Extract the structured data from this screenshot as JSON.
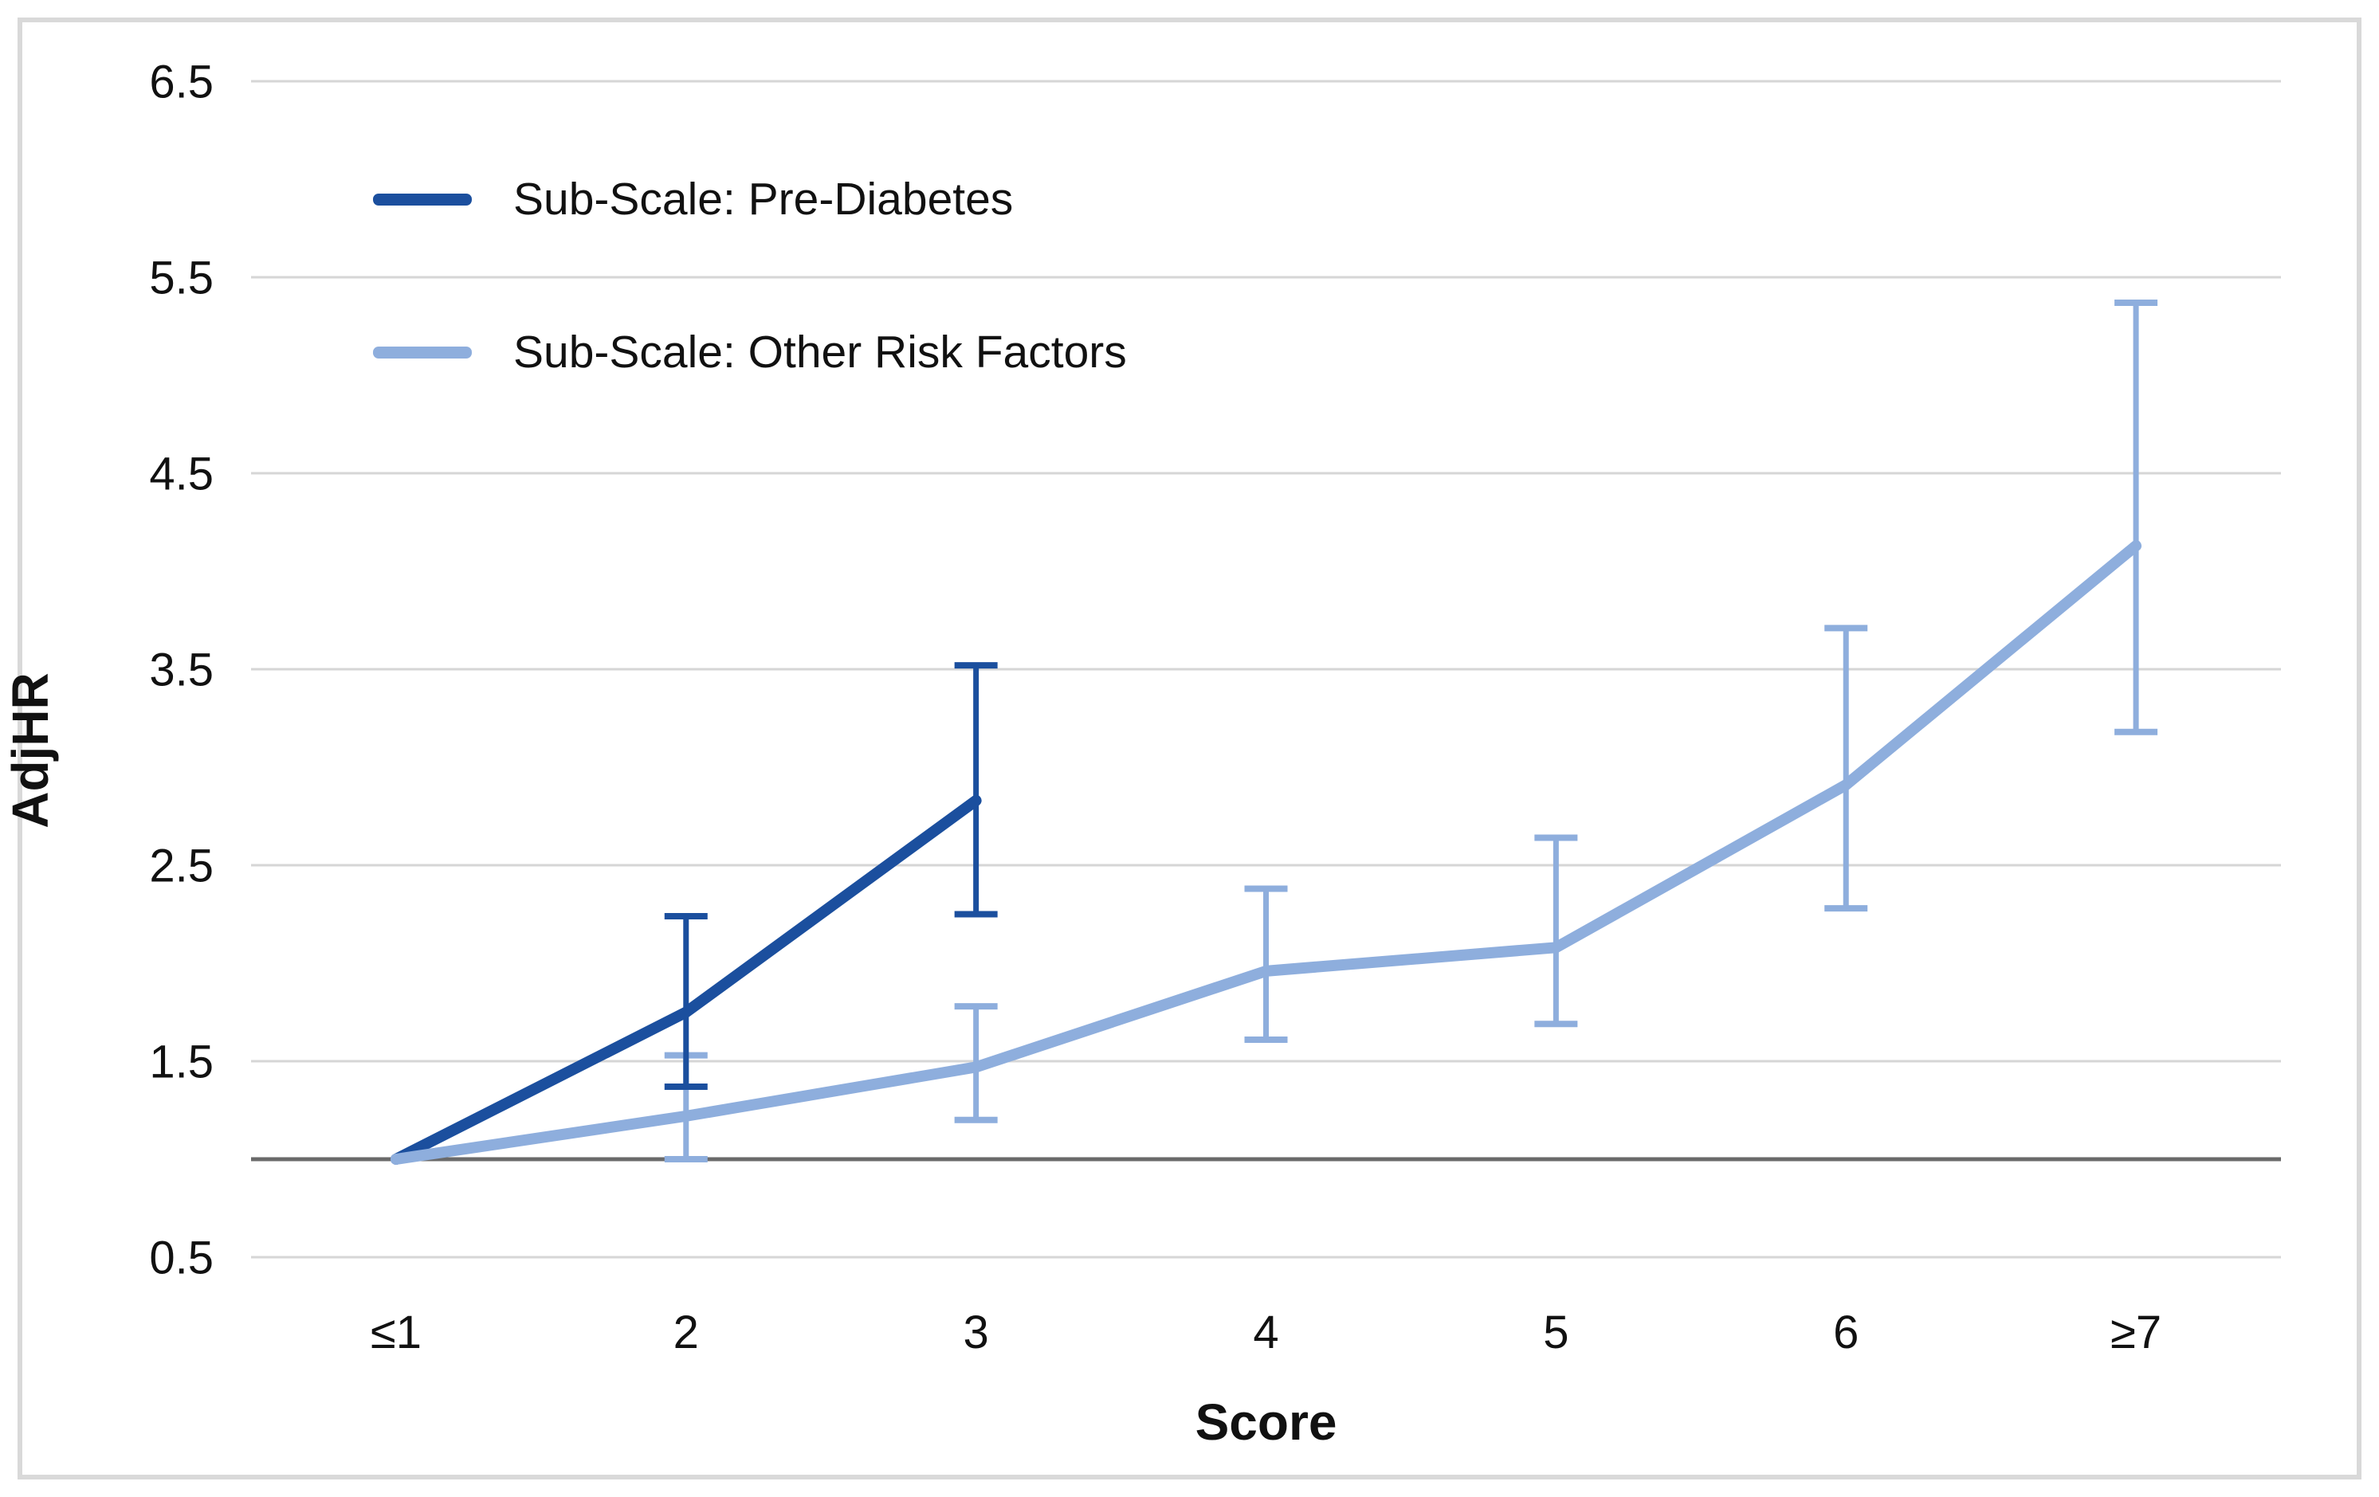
{
  "chart_data": {
    "type": "line",
    "title": "",
    "xlabel": "Score",
    "ylabel": "AdjHR",
    "categories": [
      "≤1",
      "2",
      "3",
      "4",
      "5",
      "6",
      "≥7"
    ],
    "y_ticks": [
      0.5,
      1.5,
      2.5,
      3.5,
      4.5,
      5.5,
      6.5
    ],
    "ylim": [
      0.5,
      6.5
    ],
    "grid": "horizontal gridlines only",
    "gridline_color": "#d6d6d6",
    "legend_position": "inside top-left",
    "reference_line": {
      "value": 1.0,
      "color": "#6a6a6a"
    },
    "series": [
      {
        "name": "Sub-Scale: Pre-Diabetes",
        "color": "#1b4f9e",
        "values": [
          1.0,
          1.75,
          2.83,
          null,
          null,
          null,
          null
        ],
        "ci_low": [
          null,
          1.37,
          2.25,
          null,
          null,
          null,
          null
        ],
        "ci_high": [
          null,
          2.24,
          3.52,
          null,
          null,
          null,
          null
        ]
      },
      {
        "name": "Sub-Scale: Other Risk Factors",
        "color": "#8eaedd",
        "values": [
          1.0,
          1.22,
          1.47,
          1.96,
          2.08,
          2.91,
          4.13
        ],
        "ci_low": [
          null,
          1.0,
          1.2,
          1.61,
          1.69,
          2.28,
          3.18
        ],
        "ci_high": [
          null,
          1.53,
          1.78,
          2.38,
          2.64,
          3.71,
          5.37
        ]
      }
    ]
  }
}
